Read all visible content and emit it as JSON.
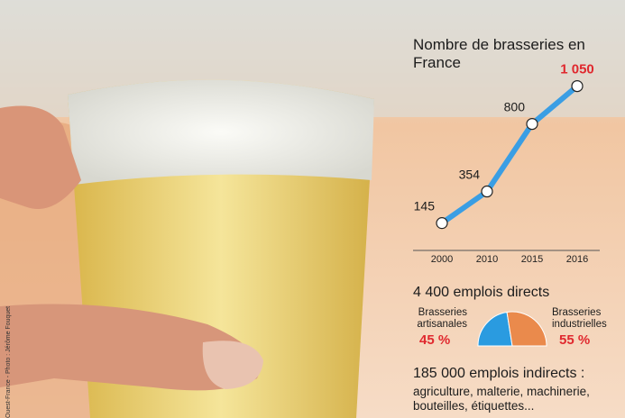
{
  "chart_data": [
    {
      "type": "line",
      "title": "Nombre de brasseries en France",
      "categories": [
        "2000",
        "2010",
        "2015",
        "2016"
      ],
      "values": [
        145,
        354,
        800,
        1050
      ],
      "value_labels": [
        "145",
        "354",
        "800",
        "1 050"
      ],
      "color": "#3a9ee4",
      "highlight_color": "#e0282e"
    },
    {
      "type": "pie",
      "title": "4 400 emplois directs",
      "categories": [
        "Brasseries artisanales",
        "Brasseries industrielles"
      ],
      "values": [
        45,
        55
      ],
      "value_labels": [
        "45 %",
        "55 %"
      ],
      "colors": [
        "#2a9be0",
        "#ea8a4c"
      ],
      "label_color": "#e0282e"
    }
  ],
  "indirect": {
    "title": "185 000 emplois indirects :",
    "text": "agriculture, malterie, machinerie, bouteilles, étiquettes..."
  },
  "credit": "Ouest-France - Photo : Jérôme Fouquet"
}
